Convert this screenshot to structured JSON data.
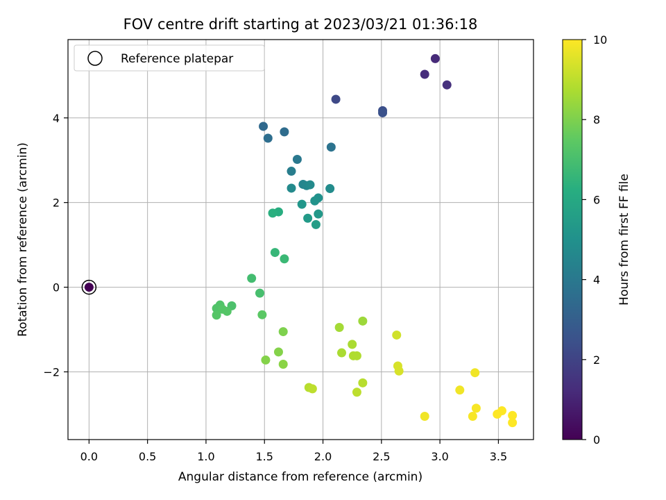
{
  "chart_data": {
    "type": "scatter",
    "title": "FOV centre drift starting at 2023/03/21 01:36:18",
    "xlabel": "Angular distance from reference (arcmin)",
    "ylabel": "Rotation from reference (arcmin)",
    "xlim": [
      -0.18,
      3.8
    ],
    "ylim": [
      -3.6,
      5.85
    ],
    "xticks": [
      0.0,
      0.5,
      1.0,
      1.5,
      2.0,
      2.5,
      3.0,
      3.5
    ],
    "xtick_labels": [
      "0.0",
      "0.5",
      "1.0",
      "1.5",
      "2.0",
      "2.5",
      "3.0",
      "3.5"
    ],
    "yticks": [
      -2,
      0,
      2,
      4
    ],
    "ytick_labels": [
      "−2",
      "0",
      "2",
      "4"
    ],
    "grid": true,
    "legend": {
      "location": "top-left",
      "entries": [
        "Reference platepar"
      ]
    },
    "reference_point": {
      "x": 0.0,
      "y": 0.0,
      "hours": 0.0
    },
    "colorbar": {
      "label": "Hours from first FF file",
      "range": [
        0,
        10
      ],
      "ticks": [
        0,
        2,
        4,
        6,
        8,
        10
      ],
      "tick_labels": [
        "0",
        "2",
        "4",
        "6",
        "8",
        "10"
      ],
      "colormap": "viridis"
    },
    "points": [
      {
        "x": 2.96,
        "y": 5.4,
        "hours": 1.2
      },
      {
        "x": 2.87,
        "y": 5.03,
        "hours": 1.3
      },
      {
        "x": 3.06,
        "y": 4.78,
        "hours": 1.4
      },
      {
        "x": 2.11,
        "y": 4.44,
        "hours": 2.2
      },
      {
        "x": 2.51,
        "y": 4.17,
        "hours": 2.4
      },
      {
        "x": 2.51,
        "y": 4.12,
        "hours": 2.5
      },
      {
        "x": 1.49,
        "y": 3.8,
        "hours": 3.4
      },
      {
        "x": 1.67,
        "y": 3.67,
        "hours": 3.5
      },
      {
        "x": 1.53,
        "y": 3.52,
        "hours": 3.6
      },
      {
        "x": 2.07,
        "y": 3.31,
        "hours": 3.8
      },
      {
        "x": 1.78,
        "y": 3.02,
        "hours": 4.0
      },
      {
        "x": 1.73,
        "y": 2.74,
        "hours": 4.2
      },
      {
        "x": 1.83,
        "y": 2.43,
        "hours": 4.5
      },
      {
        "x": 1.86,
        "y": 2.4,
        "hours": 4.6
      },
      {
        "x": 1.89,
        "y": 2.42,
        "hours": 4.7
      },
      {
        "x": 1.73,
        "y": 2.34,
        "hours": 4.7
      },
      {
        "x": 2.06,
        "y": 2.33,
        "hours": 4.8
      },
      {
        "x": 1.96,
        "y": 2.11,
        "hours": 5.0
      },
      {
        "x": 1.93,
        "y": 2.04,
        "hours": 5.1
      },
      {
        "x": 1.82,
        "y": 1.96,
        "hours": 5.2
      },
      {
        "x": 1.96,
        "y": 1.73,
        "hours": 5.3
      },
      {
        "x": 1.87,
        "y": 1.63,
        "hours": 5.4
      },
      {
        "x": 1.94,
        "y": 1.48,
        "hours": 5.5
      },
      {
        "x": 1.62,
        "y": 1.78,
        "hours": 6.2
      },
      {
        "x": 1.57,
        "y": 1.75,
        "hours": 6.3
      },
      {
        "x": 1.59,
        "y": 0.82,
        "hours": 6.6
      },
      {
        "x": 1.67,
        "y": 0.67,
        "hours": 6.7
      },
      {
        "x": 1.39,
        "y": 0.21,
        "hours": 6.9
      },
      {
        "x": 1.46,
        "y": -0.14,
        "hours": 7.0
      },
      {
        "x": 1.22,
        "y": -0.44,
        "hours": 7.1
      },
      {
        "x": 1.12,
        "y": -0.42,
        "hours": 7.2
      },
      {
        "x": 1.09,
        "y": -0.5,
        "hours": 7.2
      },
      {
        "x": 1.14,
        "y": -0.52,
        "hours": 7.3
      },
      {
        "x": 1.18,
        "y": -0.57,
        "hours": 7.3
      },
      {
        "x": 1.09,
        "y": -0.66,
        "hours": 7.3
      },
      {
        "x": 1.48,
        "y": -0.65,
        "hours": 7.4
      },
      {
        "x": 1.66,
        "y": -1.05,
        "hours": 8.0
      },
      {
        "x": 1.62,
        "y": -1.53,
        "hours": 8.1
      },
      {
        "x": 1.51,
        "y": -1.72,
        "hours": 8.1
      },
      {
        "x": 1.66,
        "y": -1.82,
        "hours": 8.2
      },
      {
        "x": 2.34,
        "y": -0.8,
        "hours": 8.5
      },
      {
        "x": 2.14,
        "y": -0.95,
        "hours": 8.6
      },
      {
        "x": 2.25,
        "y": -1.35,
        "hours": 8.7
      },
      {
        "x": 2.16,
        "y": -1.55,
        "hours": 8.7
      },
      {
        "x": 2.26,
        "y": -1.62,
        "hours": 8.8
      },
      {
        "x": 2.29,
        "y": -1.62,
        "hours": 8.8
      },
      {
        "x": 2.34,
        "y": -2.26,
        "hours": 8.9
      },
      {
        "x": 2.29,
        "y": -2.48,
        "hours": 9.0
      },
      {
        "x": 1.88,
        "y": -2.37,
        "hours": 8.9
      },
      {
        "x": 1.91,
        "y": -2.4,
        "hours": 9.0
      },
      {
        "x": 2.63,
        "y": -1.13,
        "hours": 9.3
      },
      {
        "x": 2.64,
        "y": -1.86,
        "hours": 9.4
      },
      {
        "x": 2.65,
        "y": -1.98,
        "hours": 9.4
      },
      {
        "x": 3.3,
        "y": -2.02,
        "hours": 9.8
      },
      {
        "x": 3.17,
        "y": -2.43,
        "hours": 9.8
      },
      {
        "x": 2.87,
        "y": -3.05,
        "hours": 9.8
      },
      {
        "x": 3.31,
        "y": -2.86,
        "hours": 9.9
      },
      {
        "x": 3.28,
        "y": -3.05,
        "hours": 9.9
      },
      {
        "x": 3.53,
        "y": -2.92,
        "hours": 10.0
      },
      {
        "x": 3.49,
        "y": -3.0,
        "hours": 10.0
      },
      {
        "x": 3.62,
        "y": -3.03,
        "hours": 10.0
      },
      {
        "x": 3.62,
        "y": -3.2,
        "hours": 10.0
      }
    ]
  }
}
